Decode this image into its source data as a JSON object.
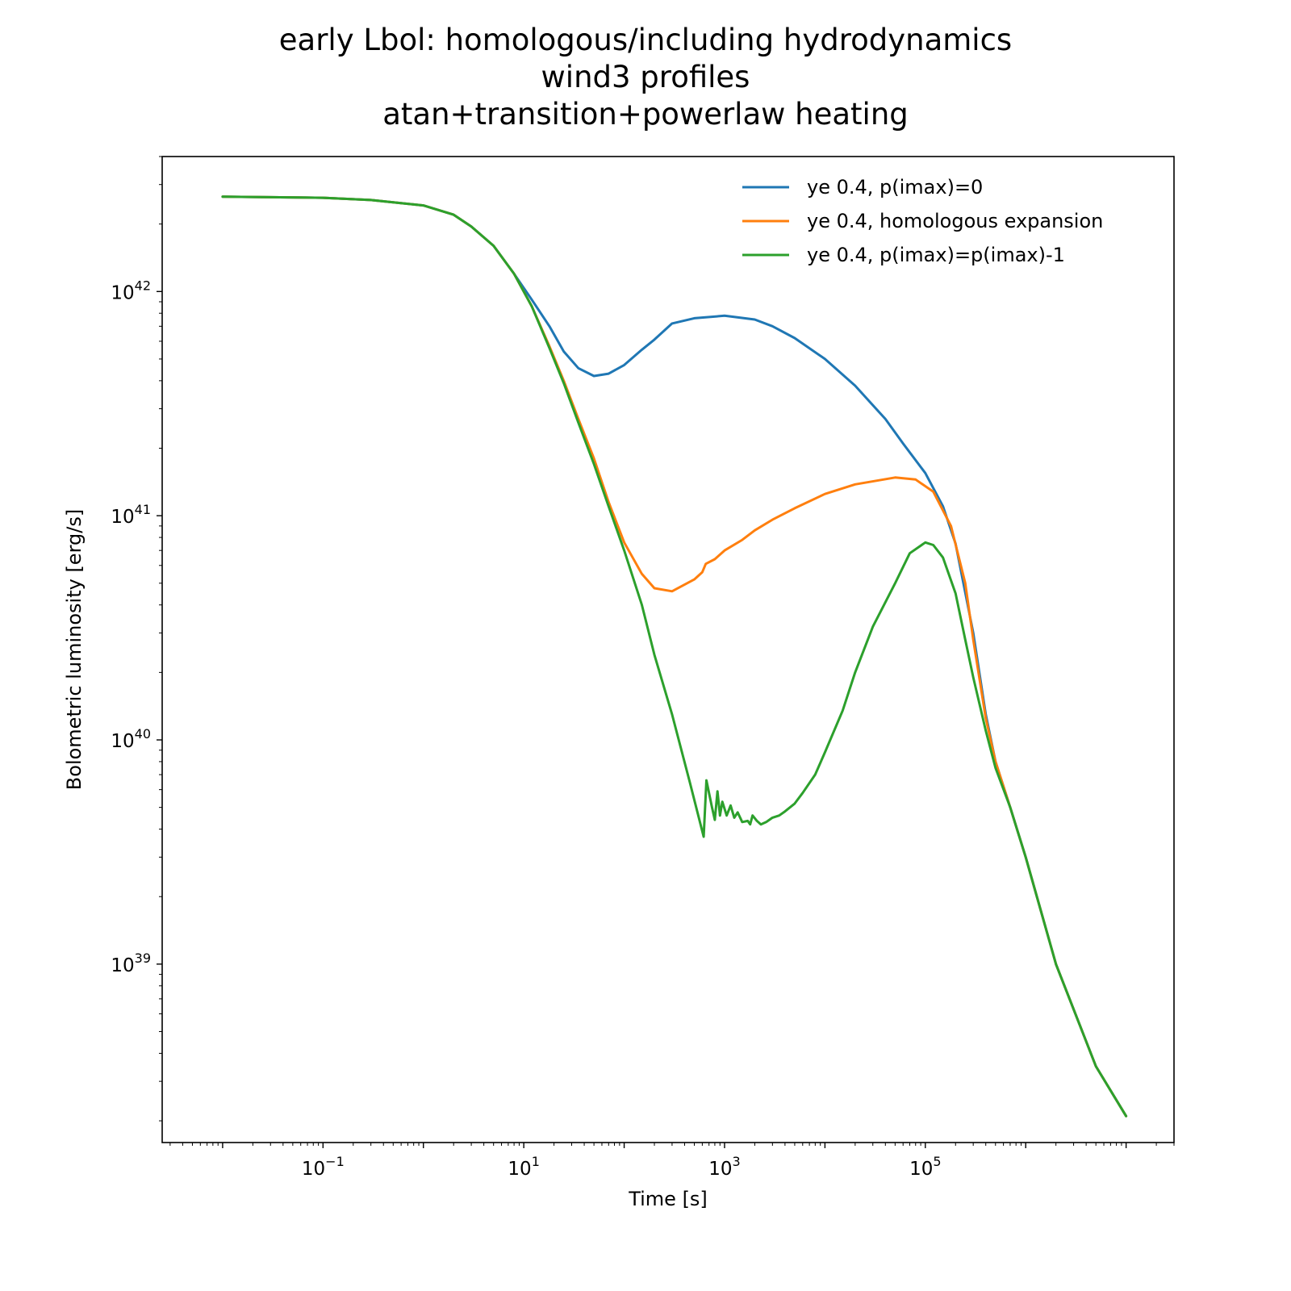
{
  "chart_data": {
    "type": "line",
    "title_lines": [
      "early Lbol: homologous/including hydrodynamics",
      "wind3 profiles",
      "atan+transition+powerlaw heating"
    ],
    "xlabel": "Time [s]",
    "ylabel": "Bolometric luminosity [erg/s]",
    "xscale": "log",
    "yscale": "log",
    "xlim": [
      0.0025,
      30000000
    ],
    "ylim": [
      1.6e+38,
      4e+42
    ],
    "x_ticks": [
      {
        "value": 0.1,
        "base": "10",
        "exp": "−1"
      },
      {
        "value": 10,
        "base": "10",
        "exp": "1"
      },
      {
        "value": 1000,
        "base": "10",
        "exp": "3"
      },
      {
        "value": 100000,
        "base": "10",
        "exp": "5"
      }
    ],
    "y_ticks": [
      {
        "value": 1e+39,
        "base": "10",
        "exp": "39"
      },
      {
        "value": 1e+40,
        "base": "10",
        "exp": "40"
      },
      {
        "value": 1e+41,
        "base": "10",
        "exp": "41"
      },
      {
        "value": 1e+42,
        "base": "10",
        "exp": "42"
      }
    ],
    "grid": false,
    "legend_position": "top-right",
    "series": [
      {
        "name": "ye 0.4, p(imax)=0",
        "color": "#1f77b4",
        "points": [
          [
            0.01,
            2.65e+42
          ],
          [
            0.1,
            2.62e+42
          ],
          [
            0.3,
            2.56e+42
          ],
          [
            1,
            2.42e+42
          ],
          [
            2,
            2.2e+42
          ],
          [
            3,
            1.95e+42
          ],
          [
            5,
            1.6e+42
          ],
          [
            8,
            1.2e+42
          ],
          [
            12,
            9.2e+41
          ],
          [
            18,
            7e+41
          ],
          [
            25,
            5.4e+41
          ],
          [
            35,
            4.55e+41
          ],
          [
            50,
            4.2e+41
          ],
          [
            70,
            4.3e+41
          ],
          [
            100,
            4.7e+41
          ],
          [
            150,
            5.5e+41
          ],
          [
            200,
            6.1e+41
          ],
          [
            300,
            7.2e+41
          ],
          [
            500,
            7.6e+41
          ],
          [
            1000,
            7.8e+41
          ],
          [
            2000,
            7.5e+41
          ],
          [
            3000,
            7e+41
          ],
          [
            5000,
            6.2e+41
          ],
          [
            10000,
            5e+41
          ],
          [
            20000,
            3.8e+41
          ],
          [
            40000,
            2.7e+41
          ],
          [
            60000,
            2.1e+41
          ],
          [
            100000,
            1.55e+41
          ],
          [
            150000,
            1.1e+41
          ],
          [
            200000,
            7.5e+40
          ],
          [
            300000,
            3e+40
          ],
          [
            400000,
            1.3e+40
          ],
          [
            500000,
            8e+39
          ],
          [
            700000,
            5e+39
          ],
          [
            1000000,
            3e+39
          ],
          [
            2000000,
            1e+39
          ],
          [
            5000000,
            3.5e+38
          ],
          [
            10000000,
            2.1e+38
          ]
        ]
      },
      {
        "name": "ye 0.4, homologous expansion",
        "color": "#ff7f0e",
        "points": [
          [
            0.01,
            2.65e+42
          ],
          [
            0.1,
            2.62e+42
          ],
          [
            0.3,
            2.56e+42
          ],
          [
            1,
            2.42e+42
          ],
          [
            2,
            2.2e+42
          ],
          [
            3,
            1.95e+42
          ],
          [
            5,
            1.6e+42
          ],
          [
            8,
            1.2e+42
          ],
          [
            12,
            8.6e+41
          ],
          [
            18,
            5.7e+41
          ],
          [
            25,
            4e+41
          ],
          [
            35,
            2.7e+41
          ],
          [
            50,
            1.8e+41
          ],
          [
            70,
            1.15e+41
          ],
          [
            100,
            7.6e+40
          ],
          [
            150,
            5.5e+40
          ],
          [
            200,
            4.75e+40
          ],
          [
            300,
            4.6e+40
          ],
          [
            500,
            5.2e+40
          ],
          [
            600,
            5.6e+40
          ],
          [
            650,
            6.1e+40
          ],
          [
            800,
            6.4e+40
          ],
          [
            1000,
            7e+40
          ],
          [
            1500,
            7.8e+40
          ],
          [
            2000,
            8.6e+40
          ],
          [
            3000,
            9.6e+40
          ],
          [
            5000,
            1.08e+41
          ],
          [
            10000,
            1.25e+41
          ],
          [
            20000,
            1.38e+41
          ],
          [
            50000,
            1.48e+41
          ],
          [
            80000,
            1.45e+41
          ],
          [
            120000,
            1.28e+41
          ],
          [
            180000,
            9e+40
          ],
          [
            250000,
            5e+40
          ],
          [
            300000,
            2.8e+40
          ],
          [
            400000,
            1.25e+40
          ],
          [
            500000,
            8e+39
          ],
          [
            700000,
            5e+39
          ],
          [
            1000000,
            3e+39
          ],
          [
            2000000,
            1e+39
          ],
          [
            5000000,
            3.5e+38
          ],
          [
            10000000,
            2.1e+38
          ]
        ]
      },
      {
        "name": "ye 0.4, p(imax)=p(imax)-1",
        "color": "#2ca02c",
        "points": [
          [
            0.01,
            2.65e+42
          ],
          [
            0.1,
            2.62e+42
          ],
          [
            0.3,
            2.56e+42
          ],
          [
            1,
            2.42e+42
          ],
          [
            2,
            2.2e+42
          ],
          [
            3,
            1.95e+42
          ],
          [
            5,
            1.6e+42
          ],
          [
            8,
            1.2e+42
          ],
          [
            12,
            8.6e+41
          ],
          [
            18,
            5.6e+41
          ],
          [
            25,
            3.9e+41
          ],
          [
            35,
            2.6e+41
          ],
          [
            50,
            1.7e+41
          ],
          [
            70,
            1.1e+41
          ],
          [
            100,
            7e+40
          ],
          [
            150,
            4e+40
          ],
          [
            200,
            2.4e+40
          ],
          [
            300,
            1.3e+40
          ],
          [
            450,
            6.5e+39
          ],
          [
            620,
            3.7e+39
          ],
          [
            660,
            6.6e+39
          ],
          [
            750,
            5e+39
          ],
          [
            800,
            4.4e+39
          ],
          [
            850,
            5.9e+39
          ],
          [
            900,
            4.6e+39
          ],
          [
            950,
            5.3e+39
          ],
          [
            1050,
            4.6e+39
          ],
          [
            1150,
            5.1e+39
          ],
          [
            1250,
            4.5e+39
          ],
          [
            1350,
            4.75e+39
          ],
          [
            1500,
            4.3e+39
          ],
          [
            1700,
            4.35e+39
          ],
          [
            1800,
            4.2e+39
          ],
          [
            1900,
            4.6e+39
          ],
          [
            2100,
            4.35e+39
          ],
          [
            2300,
            4.2e+39
          ],
          [
            2600,
            4.3e+39
          ],
          [
            3000,
            4.5e+39
          ],
          [
            3500,
            4.6e+39
          ],
          [
            4000,
            4.8e+39
          ],
          [
            5000,
            5.2e+39
          ],
          [
            6000,
            5.8e+39
          ],
          [
            8000,
            7e+39
          ],
          [
            10000,
            8.8e+39
          ],
          [
            15000,
            1.35e+40
          ],
          [
            20000,
            2e+40
          ],
          [
            30000,
            3.2e+40
          ],
          [
            50000,
            5e+40
          ],
          [
            70000,
            6.8e+40
          ],
          [
            100000,
            7.6e+40
          ],
          [
            120000,
            7.4e+40
          ],
          [
            150000,
            6.5e+40
          ],
          [
            200000,
            4.5e+40
          ],
          [
            250000,
            2.8e+40
          ],
          [
            300000,
            1.9e+40
          ],
          [
            400000,
            1.1e+40
          ],
          [
            500000,
            7.5e+39
          ],
          [
            700000,
            5e+39
          ],
          [
            1000000,
            3e+39
          ],
          [
            2000000,
            1e+39
          ],
          [
            5000000,
            3.5e+38
          ],
          [
            10000000,
            2.1e+38
          ]
        ]
      }
    ]
  }
}
